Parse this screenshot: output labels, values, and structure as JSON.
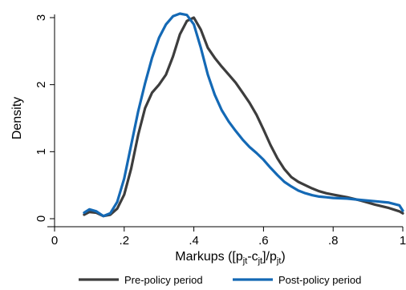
{
  "chart_data": {
    "type": "line",
    "ylabel": "Density",
    "xlabel_parts": {
      "prefix": "Markups ([p",
      "sub1": "jt",
      "mid1": "-c",
      "sub2": "jt",
      "mid2": "]/p",
      "sub3": "jt",
      "suffix": ")"
    },
    "xlim": [
      0,
      1
    ],
    "ylim": [
      0,
      3
    ],
    "x_ticks": [
      {
        "value": 0,
        "label": "0"
      },
      {
        "value": 0.2,
        "label": ".2"
      },
      {
        "value": 0.4,
        "label": ".4"
      },
      {
        "value": 0.6,
        "label": ".6"
      },
      {
        "value": 0.8,
        "label": ".8"
      },
      {
        "value": 1,
        "label": "1"
      }
    ],
    "y_ticks": [
      {
        "value": 0,
        "label": "0"
      },
      {
        "value": 1,
        "label": "1"
      },
      {
        "value": 2,
        "label": "2"
      },
      {
        "value": 3,
        "label": "3"
      }
    ],
    "grid": false,
    "legend_position": "bottom",
    "series": [
      {
        "name": "Pre-policy period",
        "color": "#3d3d3d",
        "points": [
          [
            0.085,
            0.06
          ],
          [
            0.1,
            0.1
          ],
          [
            0.12,
            0.09
          ],
          [
            0.14,
            0.04
          ],
          [
            0.16,
            0.06
          ],
          [
            0.18,
            0.15
          ],
          [
            0.2,
            0.36
          ],
          [
            0.22,
            0.75
          ],
          [
            0.24,
            1.25
          ],
          [
            0.26,
            1.65
          ],
          [
            0.28,
            1.88
          ],
          [
            0.3,
            2.0
          ],
          [
            0.32,
            2.15
          ],
          [
            0.34,
            2.42
          ],
          [
            0.36,
            2.75
          ],
          [
            0.38,
            2.95
          ],
          [
            0.4,
            3.0
          ],
          [
            0.42,
            2.82
          ],
          [
            0.44,
            2.55
          ],
          [
            0.46,
            2.4
          ],
          [
            0.48,
            2.27
          ],
          [
            0.5,
            2.15
          ],
          [
            0.52,
            2.03
          ],
          [
            0.54,
            1.88
          ],
          [
            0.56,
            1.73
          ],
          [
            0.58,
            1.55
          ],
          [
            0.6,
            1.33
          ],
          [
            0.62,
            1.1
          ],
          [
            0.64,
            0.9
          ],
          [
            0.66,
            0.74
          ],
          [
            0.68,
            0.62
          ],
          [
            0.7,
            0.55
          ],
          [
            0.72,
            0.5
          ],
          [
            0.74,
            0.45
          ],
          [
            0.76,
            0.41
          ],
          [
            0.78,
            0.38
          ],
          [
            0.8,
            0.36
          ],
          [
            0.84,
            0.32
          ],
          [
            0.88,
            0.27
          ],
          [
            0.92,
            0.21
          ],
          [
            0.96,
            0.16
          ],
          [
            0.99,
            0.11
          ],
          [
            1.0,
            0.08
          ]
        ]
      },
      {
        "name": "Post-policy period",
        "color": "#1469b5",
        "points": [
          [
            0.085,
            0.09
          ],
          [
            0.1,
            0.14
          ],
          [
            0.12,
            0.11
          ],
          [
            0.14,
            0.04
          ],
          [
            0.16,
            0.08
          ],
          [
            0.18,
            0.25
          ],
          [
            0.2,
            0.6
          ],
          [
            0.22,
            1.1
          ],
          [
            0.24,
            1.6
          ],
          [
            0.26,
            2.02
          ],
          [
            0.28,
            2.4
          ],
          [
            0.3,
            2.7
          ],
          [
            0.32,
            2.9
          ],
          [
            0.34,
            3.02
          ],
          [
            0.36,
            3.06
          ],
          [
            0.38,
            3.04
          ],
          [
            0.4,
            2.9
          ],
          [
            0.42,
            2.55
          ],
          [
            0.44,
            2.15
          ],
          [
            0.46,
            1.85
          ],
          [
            0.48,
            1.62
          ],
          [
            0.5,
            1.45
          ],
          [
            0.52,
            1.31
          ],
          [
            0.54,
            1.18
          ],
          [
            0.56,
            1.07
          ],
          [
            0.58,
            0.98
          ],
          [
            0.6,
            0.88
          ],
          [
            0.62,
            0.76
          ],
          [
            0.64,
            0.65
          ],
          [
            0.66,
            0.55
          ],
          [
            0.68,
            0.48
          ],
          [
            0.7,
            0.42
          ],
          [
            0.72,
            0.38
          ],
          [
            0.74,
            0.35
          ],
          [
            0.76,
            0.33
          ],
          [
            0.78,
            0.32
          ],
          [
            0.8,
            0.31
          ],
          [
            0.84,
            0.3
          ],
          [
            0.88,
            0.28
          ],
          [
            0.92,
            0.26
          ],
          [
            0.96,
            0.24
          ],
          [
            0.99,
            0.2
          ],
          [
            1.0,
            0.12
          ]
        ]
      }
    ]
  }
}
